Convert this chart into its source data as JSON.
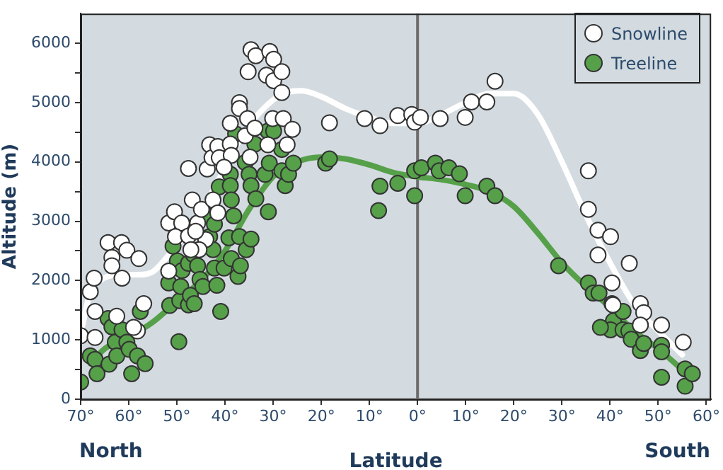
{
  "chart_data": {
    "type": "scatter",
    "xlabel": "Latitude",
    "ylabel": "Altitude (m)",
    "annotations": [
      "North",
      "South"
    ],
    "xlim": [
      -70,
      61
    ],
    "ylim": [
      0,
      6500
    ],
    "xticks": [
      {
        "value": -70,
        "label": "70°"
      },
      {
        "value": -60,
        "label": "60°"
      },
      {
        "value": -50,
        "label": "50°"
      },
      {
        "value": -40,
        "label": "40°"
      },
      {
        "value": -30,
        "label": "30°"
      },
      {
        "value": -20,
        "label": "20°"
      },
      {
        "value": -10,
        "label": "10°"
      },
      {
        "value": 0,
        "label": "0°"
      },
      {
        "value": 10,
        "label": "10°"
      },
      {
        "value": 20,
        "label": "20°"
      },
      {
        "value": 30,
        "label": "30°"
      },
      {
        "value": 40,
        "label": "40°"
      },
      {
        "value": 50,
        "label": "50°"
      },
      {
        "value": 60,
        "label": "60°"
      }
    ],
    "yticks": [
      0,
      {
        "value": 500,
        "label": null
      },
      1000,
      {
        "value": 1500,
        "label": null
      },
      2000,
      {
        "value": 2500,
        "label": null
      },
      3000,
      {
        "value": 3500,
        "label": null
      },
      4000,
      {
        "value": 4500,
        "label": null
      },
      5000,
      {
        "value": 5500,
        "label": null
      },
      6000
    ],
    "grid": false,
    "legend": "top right",
    "ref_lines": [
      {
        "axis": "x",
        "value": 0,
        "color": "#6b6b6b"
      }
    ],
    "series": [
      {
        "name": "Snowline",
        "marker": "circle",
        "color": "#ffffff",
        "x": [
          -70,
          -68,
          -67.2,
          -67,
          -67,
          -64.3,
          -63.5,
          -63.5,
          -61.5,
          -60.4,
          -61.4,
          -57.9,
          -62.5,
          -58.2,
          -56.9,
          -59,
          -47.6,
          -51.7,
          -50.5,
          -49,
          -51.7,
          -50.3,
          -47.6,
          -46.8,
          -45.7,
          -44.9,
          -43.7,
          -43.2,
          -42.7,
          -41.5,
          -41.2,
          -42.5,
          -41.5,
          -38.9,
          -38.9,
          -38.7,
          -40.2,
          -37,
          -37,
          -35.3,
          -35.8,
          -33.8,
          -34.8,
          -35.2,
          -34.6,
          -33.6,
          -31.4,
          -30.7,
          -29.9,
          -29.9,
          -28.2,
          -28.2,
          -30.1,
          -27.9,
          -26,
          -27.1,
          -31.1,
          -44,
          -45.4,
          -47.1,
          -46.1,
          -18.3,
          -11,
          -7.8,
          -4.1,
          -1.2,
          -0.6,
          0.6,
          4.7,
          9.9,
          11.2,
          14.4,
          16.1,
          35.5,
          35.5,
          37.5,
          37.5,
          40.1,
          40.4,
          44,
          46.3,
          47,
          46.3,
          50.7,
          55.2,
          40.6
        ],
        "values": [
          1070,
          1810,
          2040,
          1480,
          1040,
          2640,
          2390,
          2250,
          2640,
          2510,
          2040,
          2370,
          1400,
          1150,
          1610,
          1210,
          3890,
          2970,
          3160,
          2970,
          2160,
          2740,
          2750,
          3360,
          2970,
          3200,
          3880,
          4290,
          4070,
          4260,
          4070,
          3360,
          3140,
          4650,
          4300,
          4110,
          3910,
          5000,
          4900,
          4730,
          4440,
          4570,
          4080,
          5520,
          5890,
          5790,
          5460,
          5860,
          5730,
          5370,
          5520,
          5170,
          4730,
          4730,
          4550,
          4290,
          4290,
          2690,
          2520,
          2520,
          2830,
          4660,
          4730,
          4610,
          4780,
          4800,
          4670,
          4750,
          4730,
          4750,
          5010,
          5010,
          5360,
          3850,
          3200,
          2850,
          2430,
          2740,
          1960,
          2290,
          1610,
          1460,
          1250,
          1250,
          960,
          1590
        ]
      },
      {
        "name": "Treeline",
        "marker": "circle",
        "color": "#56a04a",
        "x": [
          -70,
          -68,
          -67,
          -66.6,
          -64.3,
          -64.1,
          -63.5,
          -62.8,
          -62.5,
          -61.4,
          -60.4,
          -59.9,
          -59.4,
          -58.2,
          -57.6,
          -56.6,
          -51.5,
          -51.7,
          -50.8,
          -49.6,
          -49.4,
          -49.9,
          -49.2,
          -48.9,
          -47.6,
          -47.6,
          -47.2,
          -46.6,
          -46.4,
          -45.7,
          -45.2,
          -44.6,
          -43.5,
          -43.2,
          -42.5,
          -42.2,
          -42.2,
          -41.7,
          -40.9,
          -41.2,
          -40.2,
          -38.9,
          -38.9,
          -38.7,
          -38.2,
          -38.7,
          -39.2,
          -37.8,
          -37.3,
          -36.8,
          -37,
          -35.8,
          -35.6,
          -35,
          -34.6,
          -34.6,
          -33.6,
          -33.8,
          -31.1,
          -29.9,
          -31.7,
          -31,
          -30.8,
          -28.2,
          -28.2,
          -27.5,
          -26.8,
          -25.8,
          -19.1,
          -18.3,
          -8.1,
          -7.8,
          -4.1,
          -0.6,
          -0.6,
          0.8,
          3.7,
          4.5,
          6.5,
          8.7,
          9.9,
          14.4,
          16.1,
          29.3,
          35.5,
          36.5,
          37.7,
          40.4,
          40.7,
          40.1,
          42.7,
          42.7,
          43.9,
          44.4,
          46.3,
          47,
          50.7,
          50.7,
          50.7,
          55.6,
          55.6,
          57.1,
          38
        ],
        "values": [
          290,
          730,
          670,
          430,
          1360,
          590,
          1220,
          960,
          730,
          1170,
          960,
          840,
          430,
          730,
          1480,
          600,
          1580,
          1960,
          2580,
          970,
          1660,
          2330,
          1900,
          2170,
          2290,
          1590,
          1750,
          2440,
          1610,
          2250,
          2020,
          1900,
          3090,
          2740,
          2520,
          2950,
          2210,
          1920,
          1480,
          3580,
          2210,
          3790,
          3600,
          3360,
          3090,
          2370,
          2720,
          4470,
          2070,
          2250,
          2740,
          3990,
          2520,
          3790,
          3600,
          2700,
          3380,
          4300,
          4520,
          4520,
          3790,
          3160,
          3980,
          4210,
          3850,
          3600,
          3790,
          3980,
          3980,
          4050,
          3180,
          3590,
          3640,
          3850,
          3430,
          3900,
          3980,
          3850,
          3900,
          3800,
          3430,
          3590,
          3430,
          2250,
          1960,
          1790,
          1790,
          1610,
          1320,
          1170,
          1480,
          1170,
          1150,
          1010,
          820,
          940,
          910,
          800,
          370,
          510,
          220,
          430,
          1210
        ]
      },
      {
        "type": "line",
        "marker": "none",
        "color": "#ffffff",
        "x": [
          -70,
          -68,
          -66,
          -62,
          -58,
          -55,
          -52,
          -48,
          -44,
          -40,
          -36,
          -32,
          -28,
          -24,
          -20,
          -15,
          -10,
          -5,
          0,
          5,
          10,
          15,
          20,
          25,
          30,
          35,
          40,
          45,
          50,
          55
        ],
        "values": [
          1100,
          1800,
          2000,
          2100,
          2100,
          2150,
          2400,
          2800,
          3300,
          3900,
          4500,
          4900,
          5150,
          5200,
          5100,
          4900,
          4750,
          4650,
          4650,
          4800,
          5000,
          5150,
          5150,
          4800,
          4000,
          3100,
          2300,
          1600,
          1150,
          750
        ]
      },
      {
        "type": "line",
        "marker": "none",
        "color": "#56a04a",
        "x": [
          -68,
          -65,
          -60,
          -55,
          -50,
          -45,
          -40,
          -35,
          -30,
          -25,
          -20,
          -15,
          -10,
          -5,
          0,
          5,
          10,
          15,
          20,
          25,
          30,
          35,
          40,
          45,
          50,
          55
        ],
        "values": [
          600,
          850,
          1050,
          1300,
          1650,
          2000,
          2500,
          3200,
          3750,
          4000,
          4080,
          4050,
          3950,
          3820,
          3750,
          3700,
          3620,
          3500,
          3250,
          2800,
          2300,
          1900,
          1550,
          1150,
          850,
          500
        ]
      }
    ]
  }
}
